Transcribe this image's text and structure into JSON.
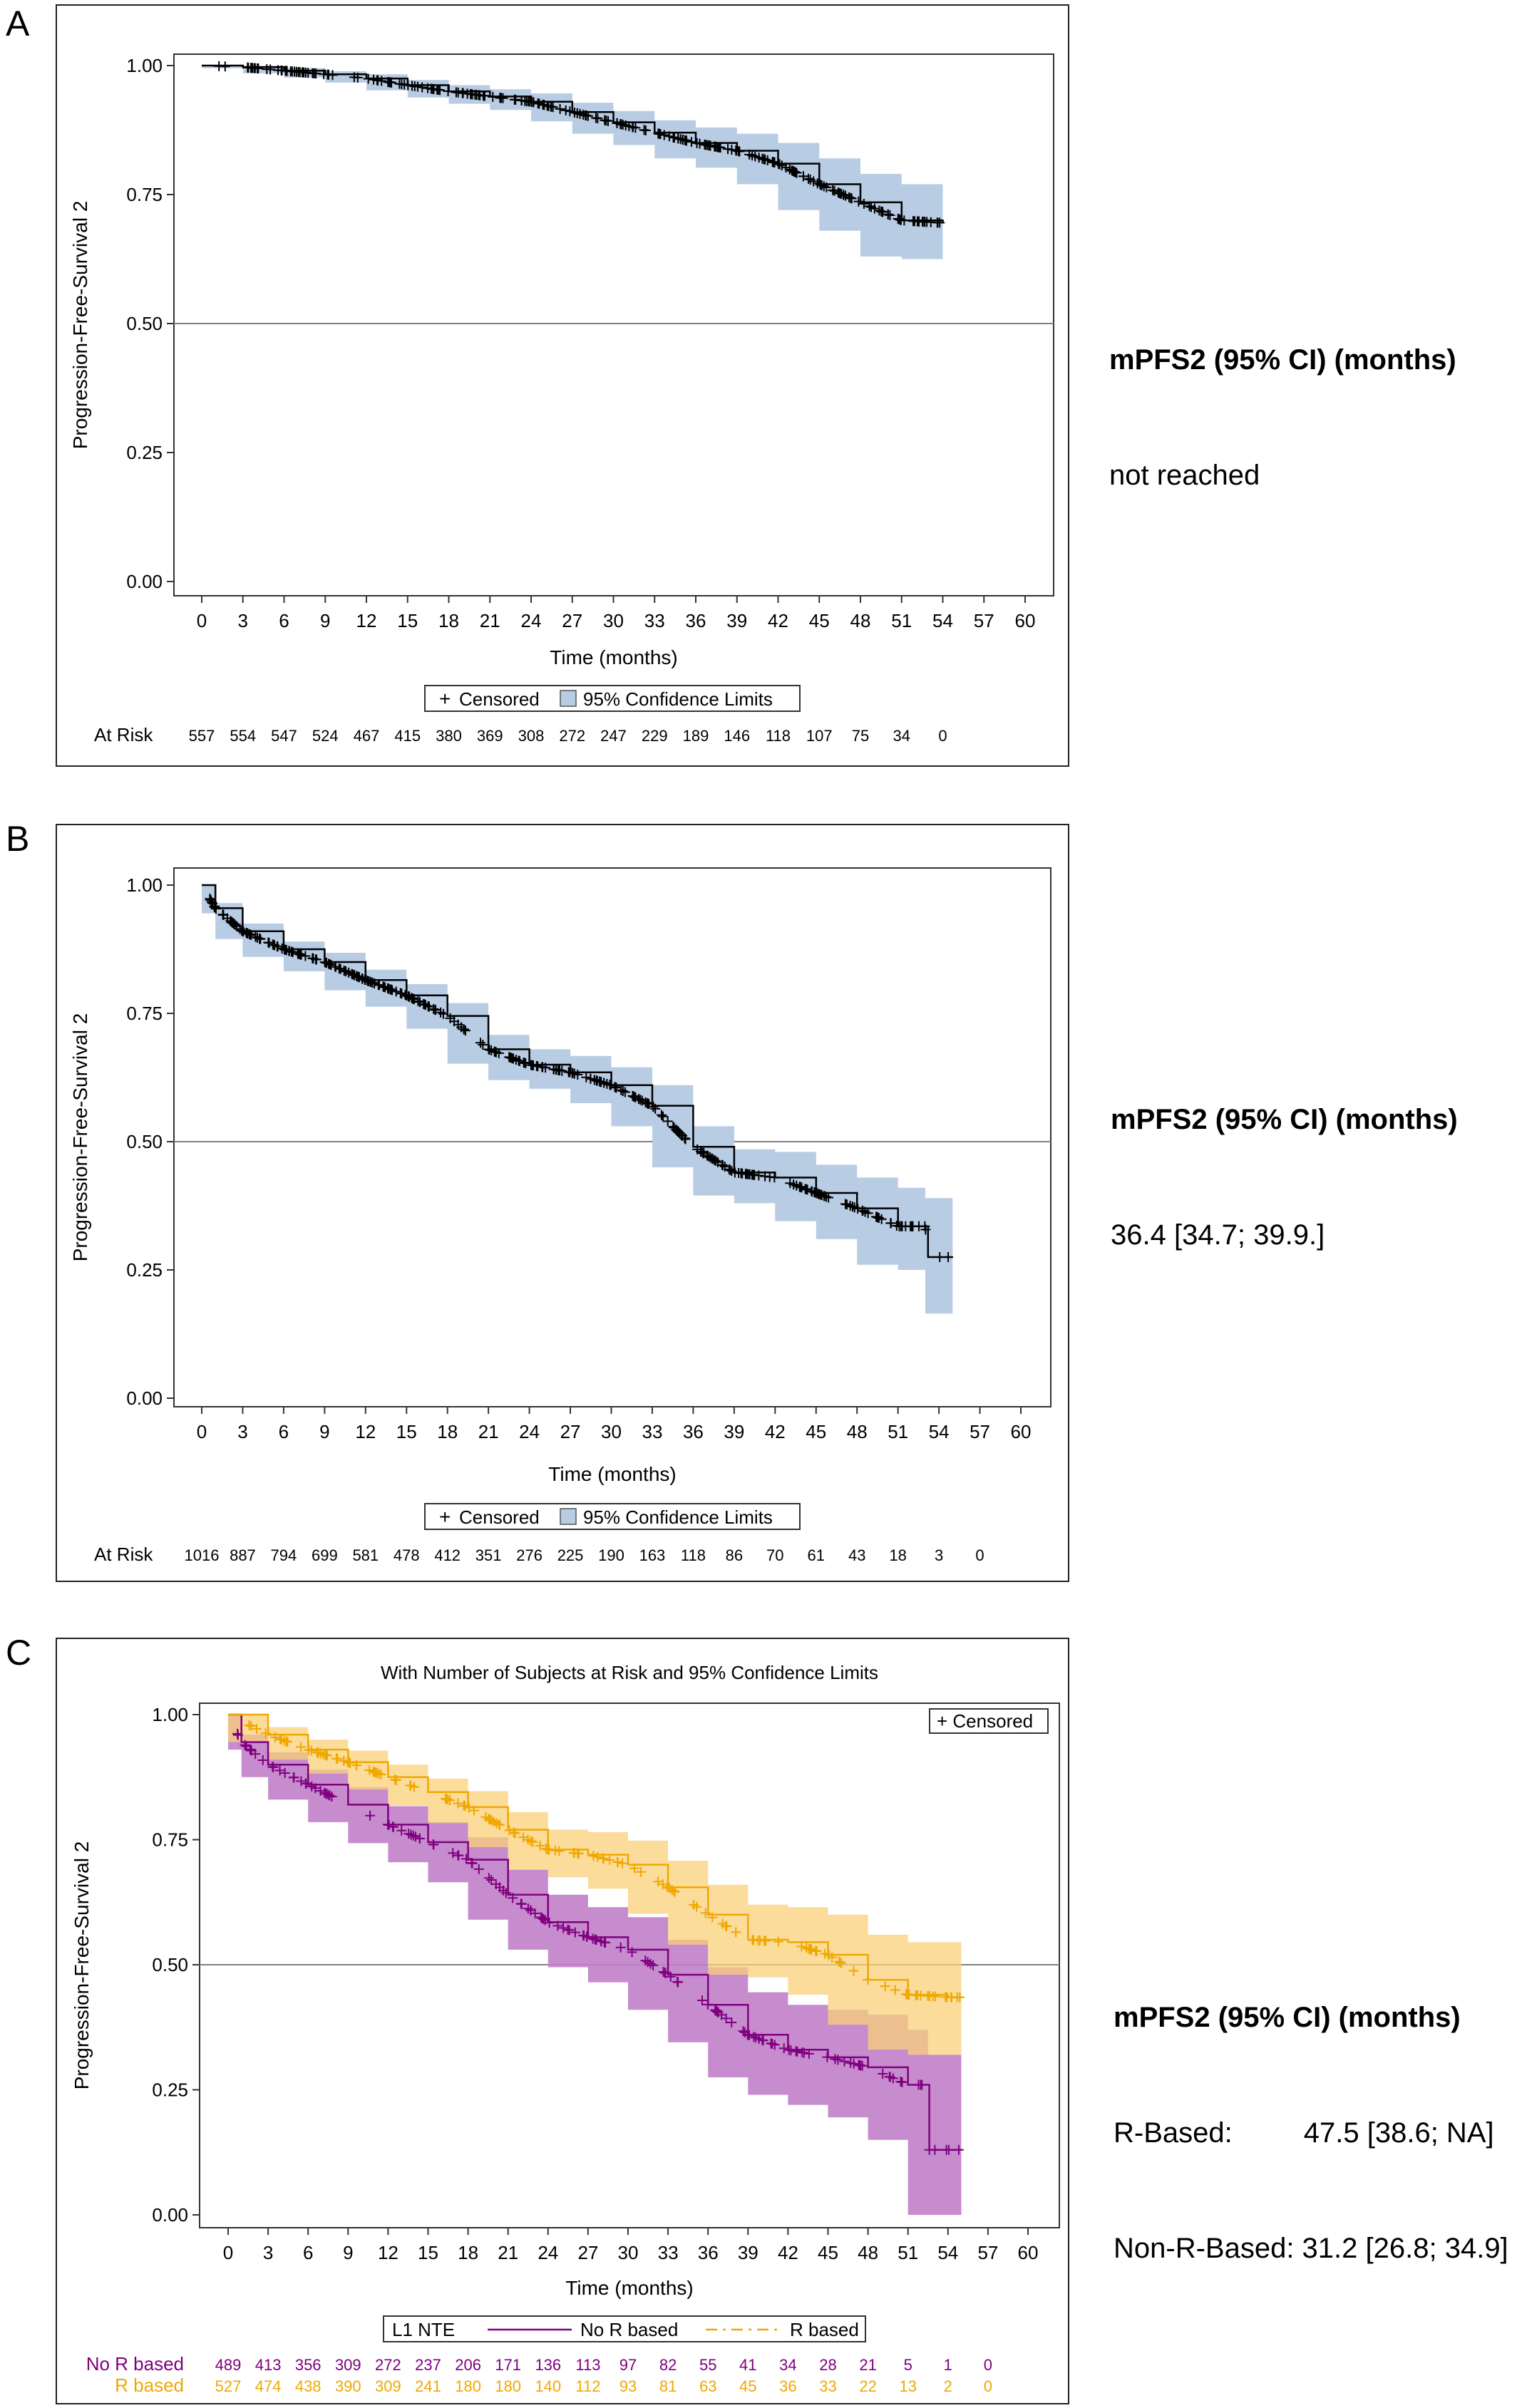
{
  "panels": [
    {
      "letter": "A",
      "mpfs2_header": "mPFS2 (95% CI) (months)",
      "mpfs2_lines": [
        "not reached"
      ]
    },
    {
      "letter": "B",
      "mpfs2_header": "mPFS2 (95% CI) (months)",
      "mpfs2_lines": [
        "36.4 [34.7; 39.9.]"
      ]
    },
    {
      "letter": "C",
      "mpfs2_header": "mPFS2 (95% CI) (months)",
      "mpfs2_lines": [
        "R-Based:         47.5 [38.6; NA]",
        "Non-R-Based: 31.2 [26.8; 34.9]"
      ]
    }
  ],
  "colors": {
    "ci_fill_blue": "#b8cce4",
    "curve_black": "#000000",
    "no_r_purple": "#800080",
    "no_r_band": "#c080c8",
    "r_orange": "#f0a800",
    "r_band": "#f9d07a",
    "ref_line": "#808080"
  },
  "chart_data": [
    {
      "type": "line",
      "title": "",
      "xlabel": "Time (months)",
      "ylabel": "Progression-Free-Survival 2",
      "xlim": [
        0,
        60
      ],
      "ylim": [
        0,
        1
      ],
      "x_ticks": [
        0,
        3,
        6,
        9,
        12,
        15,
        18,
        21,
        24,
        27,
        30,
        33,
        36,
        39,
        42,
        45,
        48,
        51,
        54,
        57,
        60
      ],
      "y_ticks": [
        "0.00",
        "0.25",
        "0.50",
        "0.75",
        "1.00"
      ],
      "reference_line_y": 0.5,
      "legend": [
        "Censored",
        "95% Confidence Limits"
      ],
      "legend_position": "below plot",
      "series": [
        {
          "x": [
            0,
            3,
            6,
            9,
            12,
            15,
            18,
            21,
            24,
            27,
            30,
            33,
            36,
            39,
            42,
            45,
            48,
            51,
            54
          ],
          "y": [
            1.0,
            0.997,
            0.99,
            0.983,
            0.975,
            0.962,
            0.95,
            0.94,
            0.93,
            0.91,
            0.89,
            0.87,
            0.85,
            0.835,
            0.81,
            0.77,
            0.735,
            0.7,
            0.695
          ],
          "ci_lower": [
            1.0,
            0.995,
            0.985,
            0.977,
            0.967,
            0.952,
            0.938,
            0.926,
            0.914,
            0.892,
            0.868,
            0.846,
            0.82,
            0.802,
            0.77,
            0.72,
            0.68,
            0.63,
            0.625
          ],
          "ci_upper": [
            1.0,
            1.0,
            0.995,
            0.989,
            0.983,
            0.972,
            0.962,
            0.954,
            0.946,
            0.928,
            0.912,
            0.894,
            0.88,
            0.868,
            0.85,
            0.82,
            0.79,
            0.77,
            0.765
          ]
        }
      ],
      "at_risk": [
        {
          "label": "At Risk",
          "values": [
            "557",
            "554",
            "547",
            "524",
            "467",
            "415",
            "380",
            "369",
            "308",
            "272",
            "247",
            "229",
            "189",
            "146",
            "118",
            "107",
            "75",
            "34",
            "0"
          ]
        }
      ]
    },
    {
      "type": "line",
      "title": "",
      "xlabel": "Time (months)",
      "ylabel": "Progression-Free-Survival 2",
      "xlim": [
        0,
        60
      ],
      "ylim": [
        0,
        1
      ],
      "x_ticks": [
        0,
        3,
        6,
        9,
        12,
        15,
        18,
        21,
        24,
        27,
        30,
        33,
        36,
        39,
        42,
        45,
        48,
        51,
        54,
        57,
        60
      ],
      "y_ticks": [
        "0.00",
        "0.25",
        "0.50",
        "0.75",
        "1.00"
      ],
      "reference_line_y": 0.5,
      "legend": [
        "Censored",
        "95% Confidence Limits"
      ],
      "legend_position": "below plot",
      "series": [
        {
          "x": [
            0,
            1,
            3,
            6,
            9,
            12,
            15,
            18,
            21,
            24,
            27,
            30,
            33,
            36,
            39,
            42,
            45,
            48,
            51,
            53,
            53.2,
            55
          ],
          "y": [
            1.0,
            0.955,
            0.91,
            0.875,
            0.85,
            0.815,
            0.785,
            0.745,
            0.68,
            0.65,
            0.635,
            0.61,
            0.57,
            0.49,
            0.44,
            0.43,
            0.4,
            0.37,
            0.335,
            0.335,
            0.275,
            0.275
          ],
          "ci_lower": [
            1.0,
            0.945,
            0.895,
            0.86,
            0.832,
            0.795,
            0.763,
            0.72,
            0.652,
            0.62,
            0.603,
            0.575,
            0.53,
            0.45,
            0.395,
            0.38,
            0.345,
            0.31,
            0.26,
            0.25,
            0.165,
            0.165
          ],
          "ci_upper": [
            1.0,
            0.965,
            0.925,
            0.89,
            0.868,
            0.835,
            0.807,
            0.77,
            0.708,
            0.68,
            0.667,
            0.645,
            0.61,
            0.53,
            0.485,
            0.48,
            0.455,
            0.43,
            0.41,
            0.39,
            0.39,
            0.39
          ]
        }
      ],
      "at_risk": [
        {
          "label": "At Risk",
          "values": [
            "1016",
            "887",
            "794",
            "699",
            "581",
            "478",
            "412",
            "351",
            "276",
            "225",
            "190",
            "163",
            "118",
            "86",
            "70",
            "61",
            "43",
            "18",
            "3",
            "0"
          ]
        }
      ]
    },
    {
      "type": "line",
      "title": "With Number of Subjects at Risk and 95% Confidence Limits",
      "xlabel": "Time (months)",
      "ylabel": "Progression-Free-Survival 2",
      "xlim": [
        0,
        60
      ],
      "ylim": [
        0,
        1
      ],
      "x_ticks": [
        0,
        3,
        6,
        9,
        12,
        15,
        18,
        21,
        24,
        27,
        30,
        33,
        36,
        39,
        42,
        45,
        48,
        51,
        54,
        57,
        60
      ],
      "y_ticks": [
        "0.00",
        "0.25",
        "0.50",
        "0.75",
        "1.00"
      ],
      "reference_line_y": 0.5,
      "legend_inset": "+ Censored",
      "legend_title": "L1 NTE",
      "legend_position": "below plot",
      "series": [
        {
          "name": "No R based",
          "x": [
            0,
            1,
            3,
            6,
            9,
            12,
            15,
            18,
            21,
            24,
            27,
            30,
            33,
            36,
            39,
            42,
            45,
            48,
            51,
            52.5,
            52.6,
            55
          ],
          "y": [
            1.0,
            0.945,
            0.9,
            0.86,
            0.82,
            0.78,
            0.745,
            0.71,
            0.64,
            0.585,
            0.555,
            0.53,
            0.48,
            0.42,
            0.36,
            0.33,
            0.315,
            0.295,
            0.26,
            0.26,
            0.13,
            0.13
          ],
          "ci_lower": [
            1.0,
            0.93,
            0.875,
            0.83,
            0.785,
            0.743,
            0.705,
            0.665,
            0.59,
            0.53,
            0.495,
            0.465,
            0.41,
            0.345,
            0.275,
            0.24,
            0.22,
            0.195,
            0.15,
            0.0,
            0.0,
            0.0
          ],
          "ci_upper": [
            1.0,
            0.96,
            0.925,
            0.89,
            0.855,
            0.817,
            0.785,
            0.755,
            0.69,
            0.64,
            0.615,
            0.595,
            0.55,
            0.495,
            0.445,
            0.42,
            0.41,
            0.4,
            0.37,
            0.32,
            0.32,
            0.32
          ]
        },
        {
          "name": "R based",
          "x": [
            0,
            3,
            6,
            9,
            12,
            15,
            18,
            21,
            24,
            27,
            30,
            33,
            36,
            39,
            42,
            45,
            48,
            51,
            54,
            55
          ],
          "y": [
            1.0,
            0.96,
            0.93,
            0.905,
            0.875,
            0.845,
            0.815,
            0.77,
            0.73,
            0.72,
            0.7,
            0.655,
            0.6,
            0.55,
            0.545,
            0.52,
            0.47,
            0.44,
            0.435,
            0.435
          ],
          "ci_lower": [
            1.0,
            0.945,
            0.91,
            0.882,
            0.85,
            0.818,
            0.783,
            0.735,
            0.69,
            0.675,
            0.652,
            0.602,
            0.54,
            0.48,
            0.475,
            0.44,
            0.38,
            0.33,
            0.32,
            0.32
          ],
          "ci_upper": [
            1.0,
            0.975,
            0.95,
            0.928,
            0.9,
            0.872,
            0.847,
            0.805,
            0.77,
            0.765,
            0.748,
            0.708,
            0.66,
            0.62,
            0.615,
            0.6,
            0.56,
            0.545,
            0.545,
            0.545
          ]
        }
      ],
      "at_risk": [
        {
          "label": "No R based",
          "values": [
            "489",
            "413",
            "356",
            "309",
            "272",
            "237",
            "206",
            "171",
            "136",
            "113",
            "97",
            "82",
            "55",
            "41",
            "34",
            "28",
            "21",
            "5",
            "1",
            "0"
          ]
        },
        {
          "label": "R based",
          "values": [
            "527",
            "474",
            "438",
            "390",
            "309",
            "241",
            "180",
            "180",
            "140",
            "112",
            "93",
            "81",
            "63",
            "45",
            "36",
            "33",
            "22",
            "13",
            "2",
            "0"
          ]
        }
      ]
    }
  ]
}
